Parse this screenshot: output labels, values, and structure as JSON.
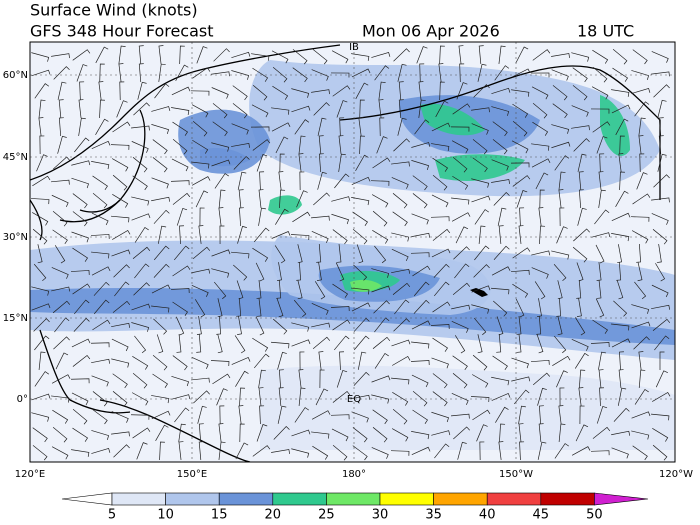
{
  "header": {
    "title": "Surface Wind (knots)",
    "subtitle": "GFS 348 Hour Forecast",
    "date": "Mon 06 Apr 2026",
    "time": "18 UTC"
  },
  "axes": {
    "lat_labels": [
      "60°N",
      "45°N",
      "30°N",
      "15°N",
      "0°"
    ],
    "lon_labels": [
      "120°E",
      "150°E",
      "180°",
      "150°W",
      "120°W"
    ]
  },
  "map_labels": {
    "equator": "EQ",
    "date_line": "IB"
  },
  "colorbar": {
    "levels": [
      5,
      10,
      15,
      20,
      25,
      30,
      35,
      40,
      45,
      50
    ],
    "colors": [
      "#ffffff",
      "#dfe7f6",
      "#b0c6ec",
      "#6a93d8",
      "#2fc98e",
      "#6ee866",
      "#ffff00",
      "#ffa500",
      "#f04040",
      "#c00000",
      "#d020d0"
    ]
  }
}
